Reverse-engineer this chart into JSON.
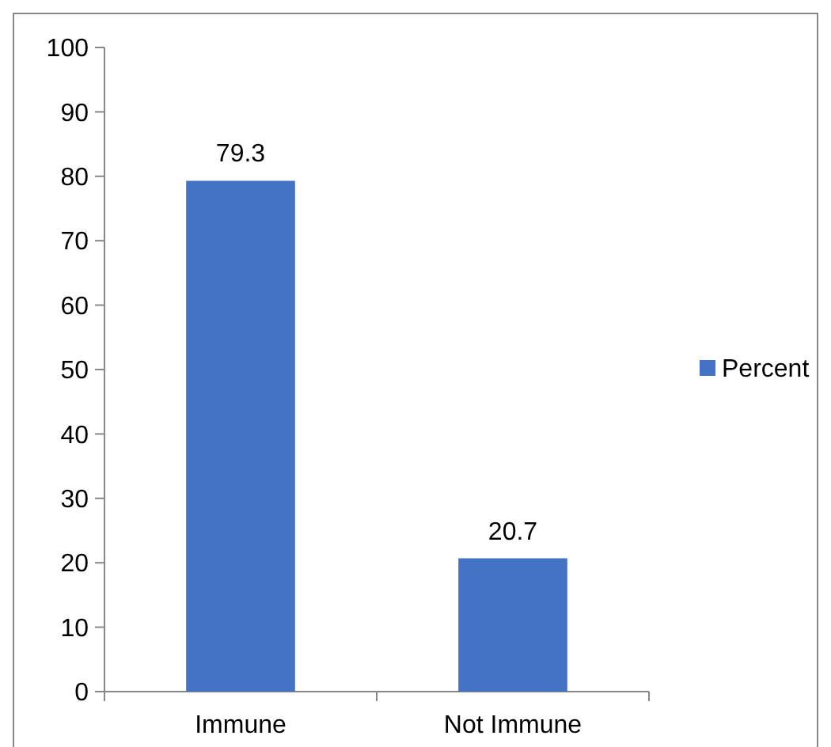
{
  "chart_data": {
    "type": "bar",
    "categories": [
      "Immune",
      "Not Immune"
    ],
    "series": [
      {
        "name": "Percent",
        "color": "#4472c4",
        "values": [
          79.3,
          20.7
        ]
      }
    ],
    "ylim": [
      0,
      100
    ],
    "yticks": [
      0,
      10,
      20,
      30,
      40,
      50,
      60,
      70,
      80,
      90,
      100
    ],
    "data_labels": true,
    "legend": "right",
    "grid": false
  }
}
